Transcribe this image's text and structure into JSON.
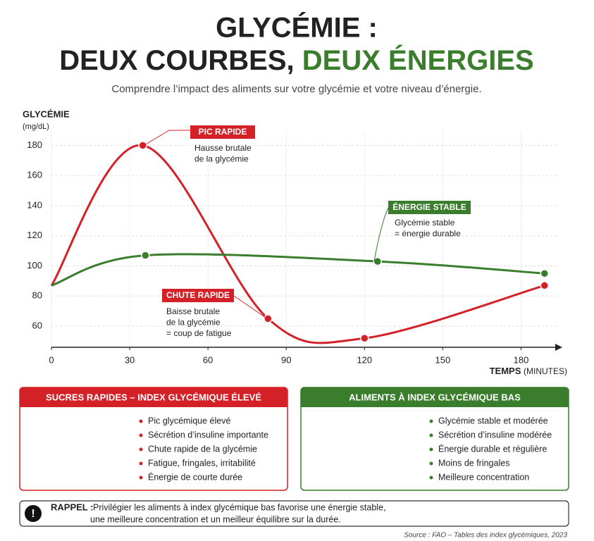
{
  "header": {
    "title_line1": "GLYCÉMIE :",
    "title_line2a": "DEUX COURBES,",
    "title_line2b": "DEUX ÉNERGIES",
    "subtitle": "Comprendre l’impact des aliments sur votre glycémie et votre niveau d’énergie."
  },
  "chart_data": {
    "type": "line",
    "y_label": "GLYCÉMIE",
    "y_unit": "(mg/dL)",
    "x_label": "TEMPS",
    "x_unit": "(MINUTES)",
    "xlim": [
      0,
      195
    ],
    "ylim": [
      46,
      190
    ],
    "xticks": [
      0,
      30,
      60,
      90,
      120,
      150,
      180
    ],
    "yticks": [
      60,
      80,
      100,
      120,
      140,
      160,
      180
    ],
    "grid": true,
    "series": [
      {
        "name": "Sucres rapides",
        "color": "#d42027",
        "x": [
          0,
          35,
          83,
          120,
          189
        ],
        "values": [
          87,
          180,
          65,
          52,
          87
        ]
      },
      {
        "name": "Index glycémique bas",
        "color": "#3a7d2c",
        "x": [
          0,
          36,
          125,
          189
        ],
        "values": [
          87,
          107,
          103,
          95
        ]
      }
    ],
    "annotations": [
      {
        "label": "PIC RAPIDE",
        "color": "#d42027",
        "lines": [
          "Hausse brutale",
          "de la glycémie"
        ]
      },
      {
        "label": "CHUTE RAPIDE",
        "color": "#d42027",
        "lines": [
          "Baisse brutale",
          "de la glycémie",
          "= coup de fatigue"
        ]
      },
      {
        "label": "ÉNERGIE STABLE",
        "color": "#3a7d2c",
        "lines": [
          "Glycémie stable",
          "= énergie durable"
        ]
      }
    ]
  },
  "panels": [
    {
      "title": "SUCRES RAPIDES – INDEX GLYCÉMIQUE ÉLEVÉ",
      "color": "#d42027",
      "items": [
        "Pic glycémique élevé",
        "Sécrétion d’insuline importante",
        "Chute rapide de la glycémie",
        "Fatigue, fringales, irritabilité",
        "Énergie de courte durée"
      ]
    },
    {
      "title": "ALIMENTS À INDEX GLYCÉMIQUE BAS",
      "color": "#3a7d2c",
      "items": [
        "Glycémie stable et modérée",
        "Sécrétion d’insuline modérée",
        "Énergie durable et régulière",
        "Moins de fringales",
        "Meilleure concentration"
      ]
    }
  ],
  "reminder": {
    "label": "RAPPEL :",
    "lines": [
      "Privilégier les aliments à index glycémique bas favorise une énergie stable,",
      "une meilleure concentration et un meilleur équilibre sur la durée."
    ]
  },
  "source": "Source : FAO – Tables des index glycémiques, 2023"
}
